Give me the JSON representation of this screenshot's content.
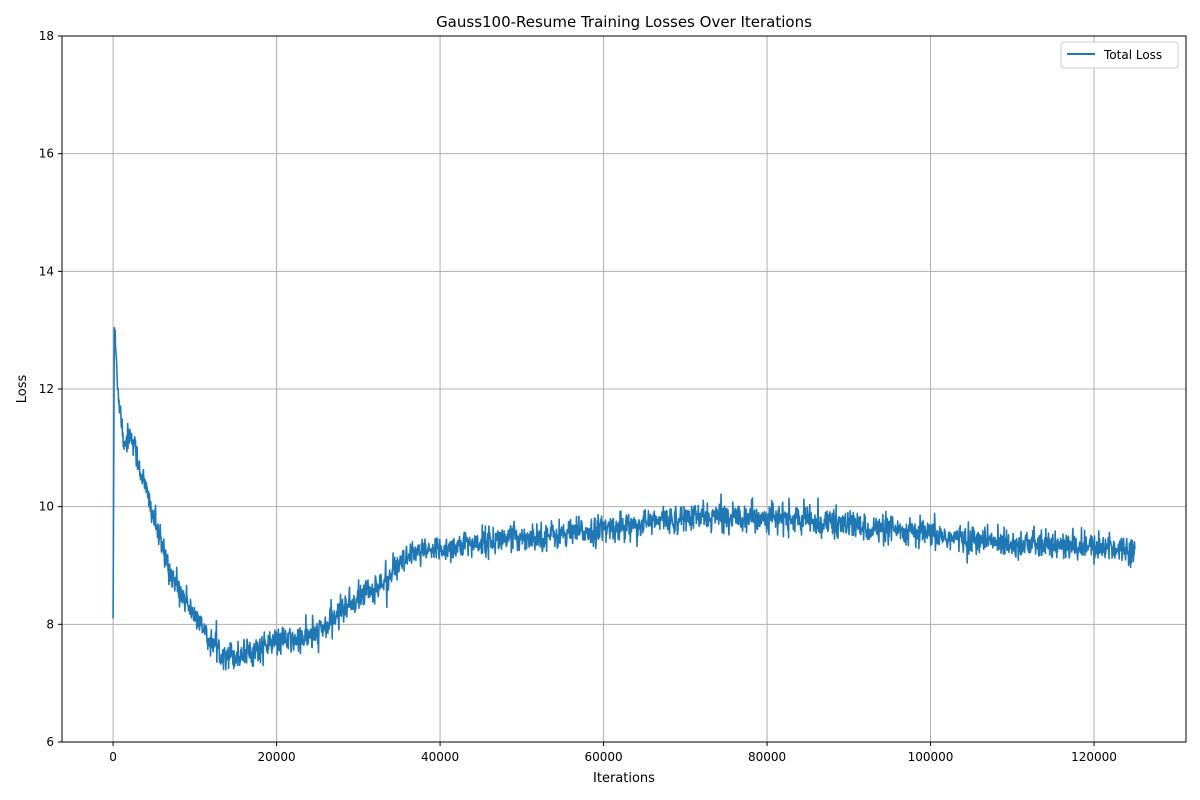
{
  "chart_data": {
    "type": "line",
    "title": "Gauss100-Resume Training Losses Over Iterations",
    "xlabel": "Iterations",
    "ylabel": "Loss",
    "xlim": [
      -6250,
      131250
    ],
    "ylim": [
      6,
      18
    ],
    "xticks": [
      0,
      20000,
      40000,
      60000,
      80000,
      100000,
      120000
    ],
    "xtick_labels": [
      "0",
      "20000",
      "40000",
      "60000",
      "80000",
      "100000",
      "120000"
    ],
    "yticks": [
      6,
      8,
      10,
      12,
      14,
      16,
      18
    ],
    "ytick_labels": [
      "6",
      "8",
      "10",
      "12",
      "14",
      "16",
      "18"
    ],
    "grid": true,
    "legend_position": "top-right",
    "series": [
      {
        "name": "Total Loss",
        "color": "#1f77b4",
        "noise_amplitude": 0.12,
        "x": [
          0,
          100,
          300,
          600,
          1000,
          1300,
          1600,
          2000,
          2500,
          3000,
          4000,
          5000,
          6000,
          7000,
          8000,
          9000,
          10000,
          11000,
          12000,
          13000,
          14000,
          15000,
          16000,
          17000,
          18000,
          19000,
          20000,
          21000,
          22000,
          23000,
          24000,
          25000,
          26000,
          27000,
          28000,
          29000,
          30000,
          31000,
          32000,
          33000,
          34000,
          35000,
          36000,
          37000,
          38000,
          39000,
          40000,
          42000,
          44000,
          46000,
          48000,
          50000,
          52000,
          54000,
          56000,
          58000,
          60000,
          62000,
          64000,
          66000,
          68000,
          70000,
          72000,
          74000,
          76000,
          78000,
          80000,
          82000,
          84000,
          86000,
          88000,
          90000,
          92000,
          94000,
          96000,
          98000,
          100000,
          102000,
          104000,
          106000,
          108000,
          110000,
          112000,
          114000,
          116000,
          118000,
          120000,
          122000,
          124000,
          125000
        ],
        "y": [
          8.1,
          13.2,
          12.7,
          12.0,
          11.5,
          11.1,
          11.1,
          11.25,
          11.1,
          10.8,
          10.3,
          9.8,
          9.3,
          8.9,
          8.6,
          8.4,
          8.15,
          7.9,
          7.7,
          7.55,
          7.5,
          7.45,
          7.5,
          7.55,
          7.6,
          7.65,
          7.7,
          7.72,
          7.72,
          7.75,
          7.78,
          7.85,
          7.95,
          8.1,
          8.25,
          8.35,
          8.45,
          8.55,
          8.6,
          8.7,
          8.85,
          9.0,
          9.1,
          9.2,
          9.22,
          9.25,
          9.28,
          9.32,
          9.38,
          9.42,
          9.45,
          9.48,
          9.5,
          9.52,
          9.55,
          9.58,
          9.62,
          9.66,
          9.7,
          9.74,
          9.78,
          9.8,
          9.82,
          9.82,
          9.84,
          9.84,
          9.82,
          9.8,
          9.78,
          9.74,
          9.72,
          9.7,
          9.65,
          9.6,
          9.58,
          9.55,
          9.52,
          9.48,
          9.45,
          9.42,
          9.4,
          9.38,
          9.36,
          9.34,
          9.33,
          9.32,
          9.3,
          9.3,
          9.29,
          9.28
        ]
      }
    ]
  }
}
